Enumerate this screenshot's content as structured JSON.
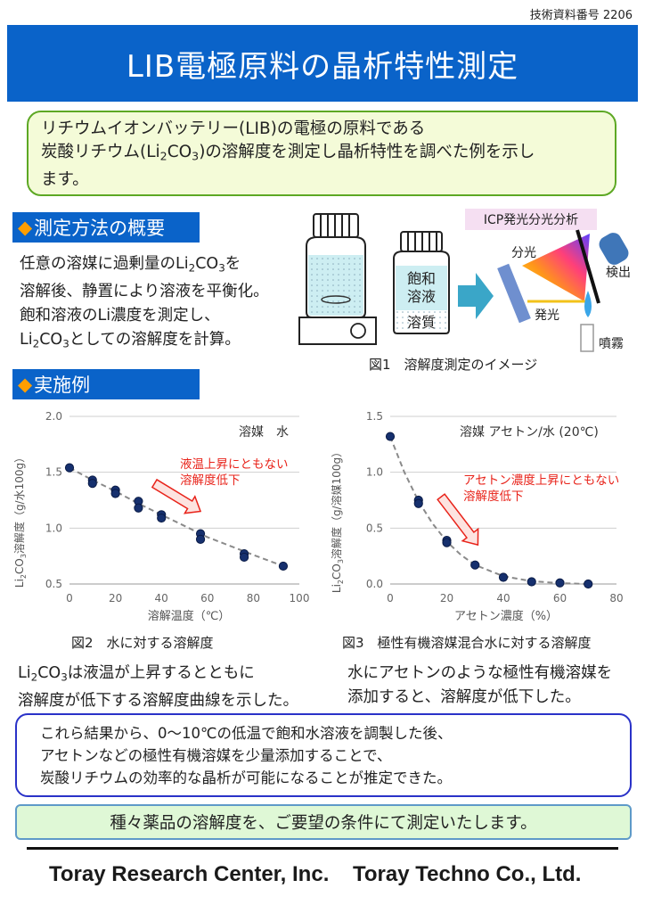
{
  "doc_number": "技術資料番号 2206",
  "title": "LIB電極原料の晶析特性測定",
  "intro": {
    "line1": "リチウムイオンバッテリー(LIB)の電極の原料である",
    "line2_a": "炭酸リチウム(Li",
    "line2_sub1": "2",
    "line2_b": "CO",
    "line2_sub2": "3",
    "line2_c": ")の溶解度を測定し晶析特性を調べた例を示し",
    "line3": "ます。"
  },
  "section1": {
    "marker": "◆",
    "label": "測定方法の概要"
  },
  "section2": {
    "marker": "◆",
    "label": "実施例"
  },
  "method": {
    "l1_a": "任意の溶媒に過剰量のLi",
    "l1_s1": "2",
    "l1_b": "CO",
    "l1_s2": "3",
    "l1_c": "を",
    "l2": "溶解後、静置により溶液を平衡化。",
    "l3": "飽和溶液のLi濃度を測定し、",
    "l4_a": "Li",
    "l4_s1": "2",
    "l4_b": "CO",
    "l4_s2": "3",
    "l4_c": "としての溶解度を計算。"
  },
  "illustration": {
    "icp_label": "ICP発光分光分析",
    "saturated_line1": "飽和",
    "saturated_line2": "溶液",
    "solute": "溶質",
    "bunko": "分光",
    "kenshutsu": "検出",
    "hakko": "発光",
    "funmu": "噴霧"
  },
  "fig1_caption": "図1　溶解度測定のイメージ",
  "fig2_caption": "図2　水に対する溶解度",
  "fig3_caption": "図3　極性有機溶媒混合水に対する溶解度",
  "chart_data": [
    {
      "type": "scatter",
      "solvent_label": "溶媒　水",
      "annotation": [
        "液温上昇にともない",
        "溶解度低下"
      ],
      "xlabel": "溶解温度（℃）",
      "ylabel_a": "Li",
      "ylabel_s1": "2",
      "ylabel_b": "CO",
      "ylabel_s2": "3",
      "ylabel_c": "溶解度（g/水100g）",
      "xlim": [
        0,
        100
      ],
      "ylim": [
        0.5,
        2.0
      ],
      "xticks": [
        0,
        20,
        40,
        60,
        80,
        100
      ],
      "yticks": [
        "0.5",
        "1.0",
        "1.5",
        "2.0"
      ],
      "grid": "horizontal",
      "points": [
        {
          "x": 0,
          "y": 1.54
        },
        {
          "x": 10,
          "y": 1.43
        },
        {
          "x": 10,
          "y": 1.4
        },
        {
          "x": 20,
          "y": 1.34
        },
        {
          "x": 20,
          "y": 1.31
        },
        {
          "x": 30,
          "y": 1.24
        },
        {
          "x": 30,
          "y": 1.18
        },
        {
          "x": 40,
          "y": 1.12
        },
        {
          "x": 40,
          "y": 1.09
        },
        {
          "x": 57,
          "y": 0.95
        },
        {
          "x": 57,
          "y": 0.9
        },
        {
          "x": 76,
          "y": 0.77
        },
        {
          "x": 76,
          "y": 0.74
        },
        {
          "x": 93,
          "y": 0.66
        }
      ],
      "trend": [
        [
          0,
          1.54
        ],
        [
          10,
          1.43
        ],
        [
          20,
          1.33
        ],
        [
          30,
          1.22
        ],
        [
          40,
          1.12
        ],
        [
          50,
          1.02
        ],
        [
          60,
          0.92
        ],
        [
          70,
          0.84
        ],
        [
          80,
          0.76
        ],
        [
          93,
          0.66
        ]
      ],
      "arrow": {
        "from": [
          37,
          1.4
        ],
        "to": [
          57,
          1.15
        ]
      }
    },
    {
      "type": "scatter",
      "solvent_label": "溶媒 アセトン/水 (20℃)",
      "annotation": [
        "アセトン濃度上昇にともない",
        "溶解度低下"
      ],
      "xlabel": "アセトン濃度（%）",
      "ylabel_a": "Li",
      "ylabel_s1": "2",
      "ylabel_b": "CO",
      "ylabel_s2": "3",
      "ylabel_c": "溶解度（g/溶媒100g）",
      "xlim": [
        0,
        80
      ],
      "ylim": [
        0,
        1.5
      ],
      "xticks": [
        0,
        20,
        40,
        60,
        80
      ],
      "yticks": [
        "0.0",
        "0.5",
        "1.0",
        "1.5"
      ],
      "grid": "horizontal",
      "points": [
        {
          "x": 0,
          "y": 1.32
        },
        {
          "x": 10,
          "y": 0.75
        },
        {
          "x": 10,
          "y": 0.72
        },
        {
          "x": 20,
          "y": 0.39
        },
        {
          "x": 20,
          "y": 0.37
        },
        {
          "x": 30,
          "y": 0.17
        },
        {
          "x": 40,
          "y": 0.06
        },
        {
          "x": 50,
          "y": 0.02
        },
        {
          "x": 60,
          "y": 0.01
        },
        {
          "x": 70,
          "y": 0.0
        }
      ],
      "trend": [
        [
          0,
          1.32
        ],
        [
          5,
          1.0
        ],
        [
          10,
          0.74
        ],
        [
          15,
          0.54
        ],
        [
          20,
          0.38
        ],
        [
          25,
          0.26
        ],
        [
          30,
          0.17
        ],
        [
          40,
          0.07
        ],
        [
          50,
          0.025
        ],
        [
          60,
          0.008
        ],
        [
          70,
          0.0
        ]
      ],
      "arrow": {
        "from": [
          18,
          0.78
        ],
        "to": [
          31,
          0.35
        ]
      }
    }
  ],
  "result1": {
    "l1_a": "Li",
    "l1_s1": "2",
    "l1_b": "CO",
    "l1_s2": "3",
    "l1_c": "は液温が上昇するとともに",
    "l2": "溶解度が低下する溶解度曲線を示した。"
  },
  "result2": {
    "l1": "水にアセトンのような極性有機溶媒を",
    "l2": "添加すると、溶解度が低下した。"
  },
  "conclusion": {
    "l1": "これら結果から、0～10℃の低温で飽和水溶液を調製した後、",
    "l2": "アセトンなどの極性有機溶媒を少量添加することで、",
    "l3": "炭酸リチウムの効率的な晶析が可能になることが推定できた。"
  },
  "cta": "種々薬品の溶解度を、ご要望の条件にて測定いたします。",
  "footer": {
    "company1": "Toray Research Center, Inc.",
    "company2": "Toray Techno Co., Ltd."
  },
  "colors": {
    "banner": "#0a63c9",
    "accent_marker": "#ff9e00",
    "intro_border": "#5da824",
    "annot_red": "#e8231a",
    "points": "#16306e"
  }
}
